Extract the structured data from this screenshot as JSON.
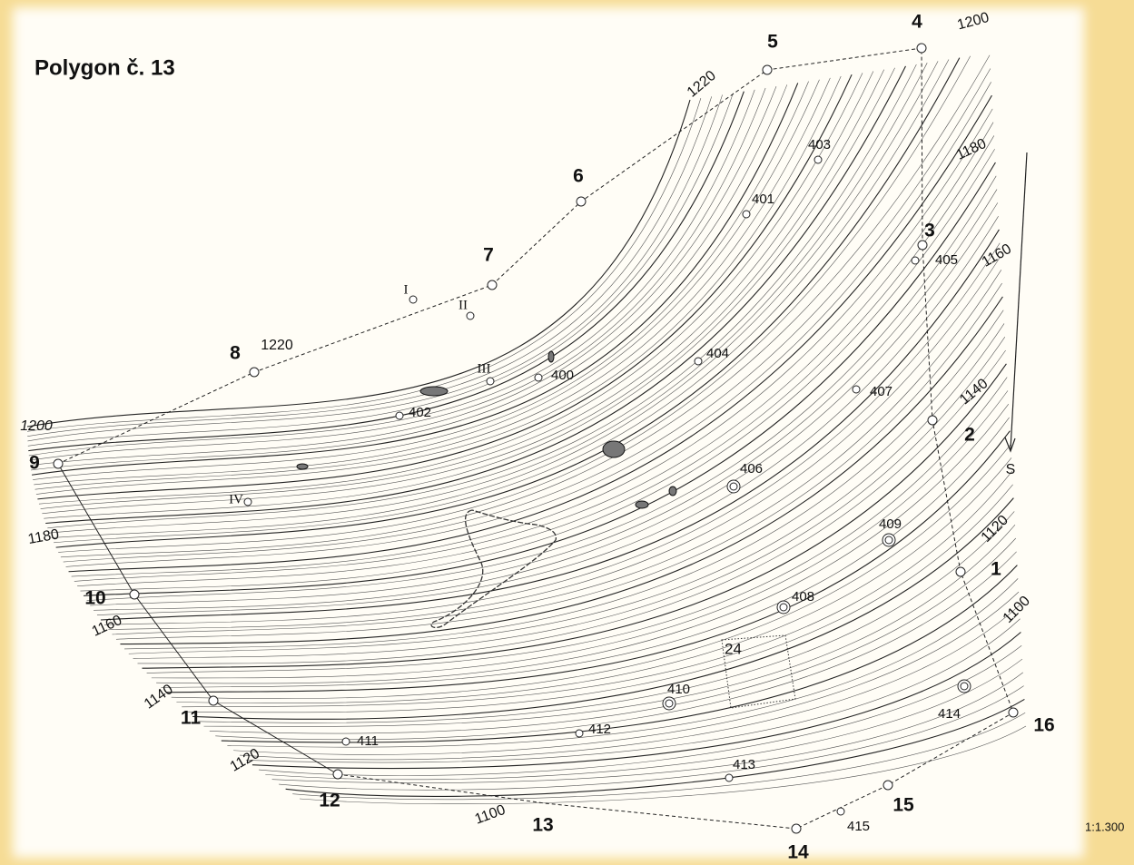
{
  "title": "Polygon č. 13",
  "vertices": [
    {
      "label": "1"
    },
    {
      "label": "2"
    },
    {
      "label": "3"
    },
    {
      "label": "4"
    },
    {
      "label": "5"
    },
    {
      "label": "6"
    },
    {
      "label": "7"
    },
    {
      "label": "8"
    },
    {
      "label": "9"
    },
    {
      "label": "10"
    },
    {
      "label": "11"
    },
    {
      "label": "12"
    },
    {
      "label": "13"
    },
    {
      "label": "14"
    },
    {
      "label": "15"
    },
    {
      "label": "16"
    }
  ],
  "points": [
    {
      "label": "400"
    },
    {
      "label": "401"
    },
    {
      "label": "402"
    },
    {
      "label": "403"
    },
    {
      "label": "404"
    },
    {
      "label": "405"
    },
    {
      "label": "406"
    },
    {
      "label": "407"
    },
    {
      "label": "408"
    },
    {
      "label": "409"
    },
    {
      "label": "410"
    },
    {
      "label": "411"
    },
    {
      "label": "412"
    },
    {
      "label": "413"
    },
    {
      "label": "414"
    },
    {
      "label": "415"
    }
  ],
  "roman_points": [
    {
      "label": "I"
    },
    {
      "label": "II"
    },
    {
      "label": "III"
    },
    {
      "label": "IV"
    }
  ],
  "contour_labels": [
    "1200",
    "1220",
    "1180",
    "1160",
    "1140",
    "1120",
    "1100",
    "1220",
    "1200",
    "1180",
    "1160",
    "1140",
    "1120",
    "1100"
  ],
  "north_label": "S",
  "plot_label": "24",
  "scale": "1:1.300"
}
